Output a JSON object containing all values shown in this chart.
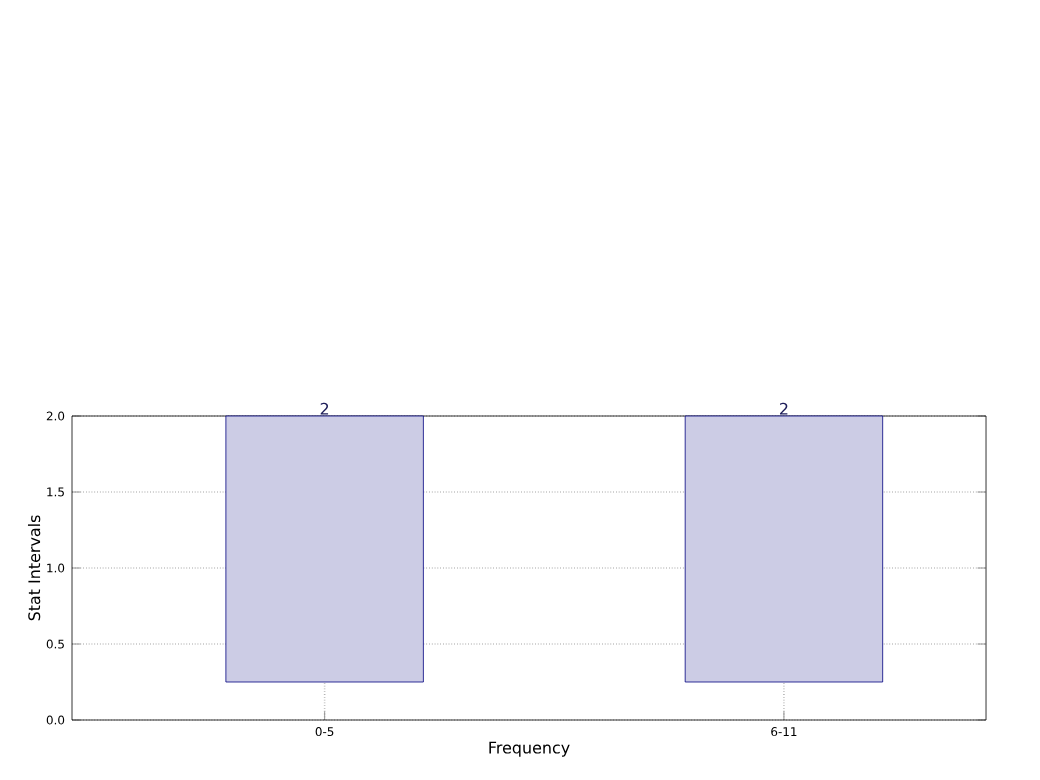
{
  "chart_data": {
    "type": "bar",
    "xlabel": "Frequency",
    "ylabel": "Stat Intervals",
    "categories": [
      "0-5",
      "6-11"
    ],
    "values": [
      1.75,
      1.75
    ],
    "base": [
      0.25,
      0.25
    ],
    "value_labels": [
      "2",
      "2"
    ],
    "color": "#ccccE5",
    "ylim": [
      0,
      2
    ],
    "yticks": [
      {
        "value": 0,
        "label": "0.0"
      },
      {
        "value": 0.5,
        "label": "0.5"
      },
      {
        "value": 1,
        "label": "1.0"
      },
      {
        "value": 1.5,
        "label": "1.5"
      },
      {
        "value": 2,
        "label": "2.0"
      }
    ],
    "grid": true
  }
}
